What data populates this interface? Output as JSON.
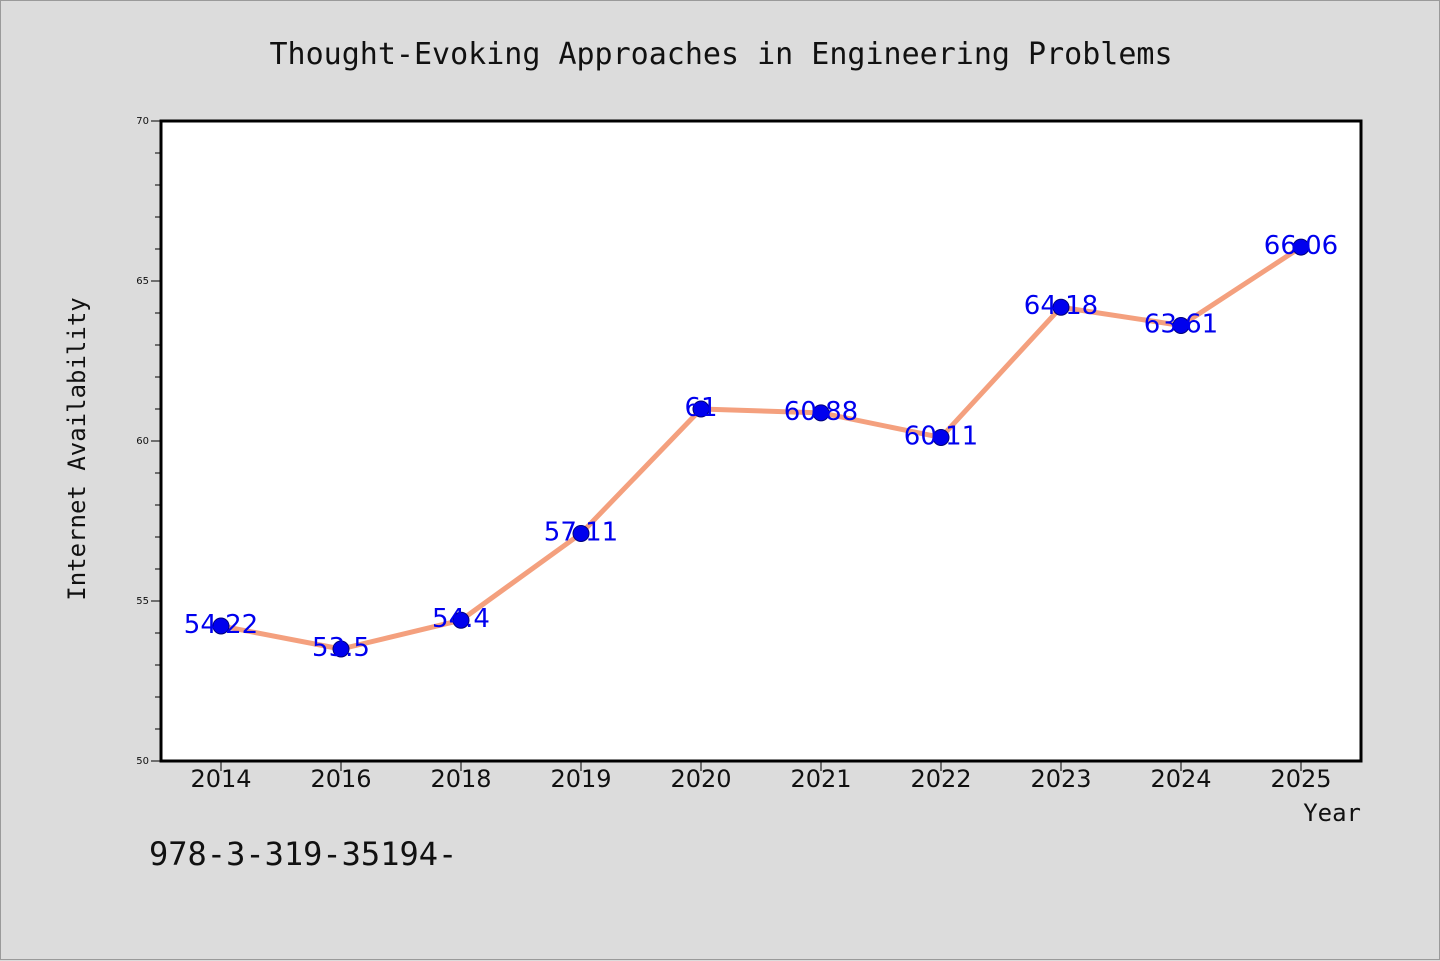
{
  "chart_data": {
    "type": "line",
    "title": "Thought-Evoking Approaches in Engineering Problems",
    "xlabel": "Year",
    "ylabel": "Internet Availability",
    "categories": [
      "2014",
      "2016",
      "2018",
      "2019",
      "2020",
      "2021",
      "2022",
      "2023",
      "2024",
      "2025"
    ],
    "series": [
      {
        "values": [
          54.22,
          53.5,
          54.4,
          57.11,
          61,
          60.88,
          60.11,
          64.18,
          63.61,
          66.06
        ],
        "data_labels": [
          "54.22",
          "53.5",
          "54.4",
          "57.11",
          "61",
          "60.88",
          "60.11",
          "64.18",
          "63.61",
          "66.06"
        ],
        "line_color": "#f4a07e",
        "marker_color": "#0000ee"
      }
    ],
    "ylim": [
      50,
      70
    ],
    "yticks": [
      "50",
      "55",
      "60",
      "65",
      "70"
    ],
    "grid": false,
    "plot_background": "#ffffff",
    "figure_background": "#dcdcdc"
  },
  "footnote": "978-3-319-35194-"
}
